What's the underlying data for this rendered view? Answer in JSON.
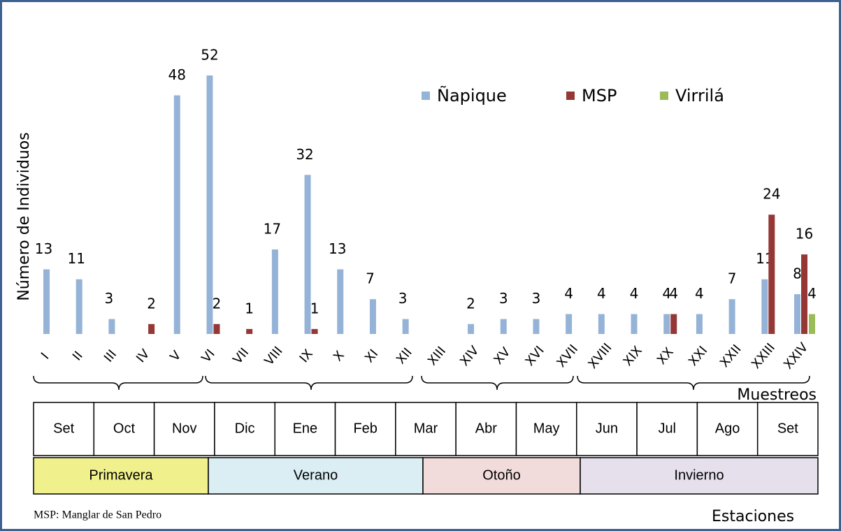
{
  "chart_data": {
    "type": "bar",
    "y_label": "Número de Individuos",
    "x_label": "Muestreos",
    "categories": [
      "I",
      "II",
      "III",
      "IV",
      "V",
      "VI",
      "VII",
      "VIII",
      "IX",
      "X",
      "XI",
      "XII",
      "XIII",
      "XIV",
      "XV",
      "XVI",
      "XVII",
      "XVIII",
      "XIX",
      "XX",
      "XXI",
      "XXII",
      "XXIII",
      "XXIV"
    ],
    "series": [
      {
        "name": "Ñapique",
        "color": "#95b3d7",
        "values": [
          13,
          11,
          3,
          null,
          48,
          52,
          null,
          17,
          32,
          13,
          7,
          3,
          null,
          2,
          3,
          3,
          4,
          4,
          4,
          4,
          4,
          7,
          11,
          8
        ]
      },
      {
        "name": "MSP",
        "color": "#953735",
        "values": [
          null,
          null,
          null,
          2,
          null,
          2,
          1,
          null,
          1,
          null,
          null,
          null,
          null,
          null,
          null,
          null,
          null,
          null,
          null,
          4,
          null,
          null,
          24,
          16
        ]
      },
      {
        "name": "Virrilá",
        "color": "#9bbb59",
        "values": [
          null,
          null,
          null,
          null,
          null,
          null,
          null,
          null,
          null,
          null,
          null,
          null,
          null,
          null,
          null,
          null,
          null,
          null,
          null,
          null,
          null,
          null,
          null,
          4
        ]
      }
    ],
    "months": [
      "Set",
      "Oct",
      "Nov",
      "Dic",
      "Ene",
      "Feb",
      "Mar",
      "Abr",
      "May",
      "Jun",
      "Jul",
      "Ago",
      "Set"
    ],
    "seasons": [
      "Primavera",
      "Verano",
      "Otoño",
      "Invierno"
    ],
    "seasons_label": "Estaciones",
    "footnote": "MSP: Manglar de San Pedro"
  }
}
